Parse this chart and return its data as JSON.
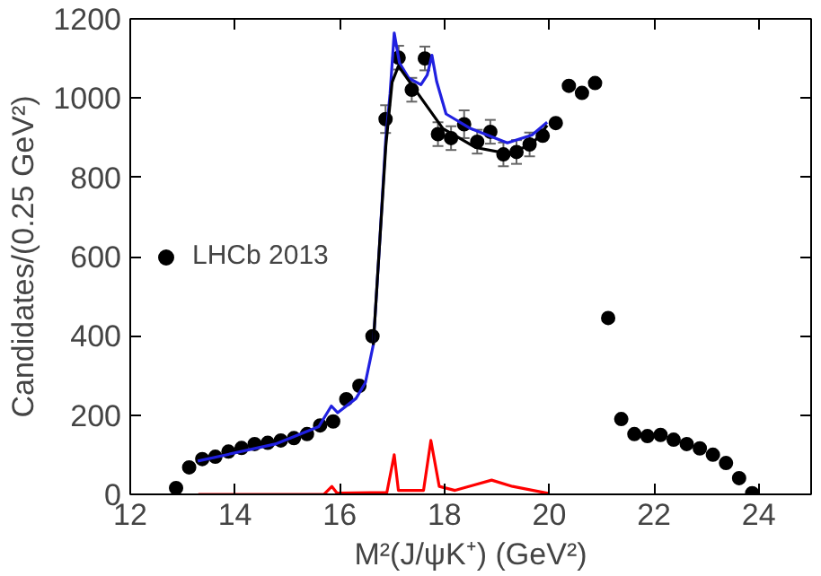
{
  "chart_data": {
    "type": "scatter",
    "xlabel": "M²(J/ψK⁺) (GeV²)",
    "ylabel": "Candidates/(0.25 GeV²)",
    "xlim": [
      12,
      25
    ],
    "ylim": [
      0,
      1200
    ],
    "xticks": [
      12,
      14,
      16,
      18,
      20,
      22,
      24
    ],
    "yticks": [
      0,
      200,
      400,
      600,
      800,
      1000,
      1200
    ],
    "grid": false,
    "legend": "left",
    "series": [
      {
        "name": "LHCb 2013",
        "marker": "circle",
        "color": "#000000",
        "x": [
          12.875,
          13.125,
          13.375,
          13.625,
          13.875,
          14.125,
          14.375,
          14.625,
          14.875,
          15.125,
          15.375,
          15.625,
          15.875,
          16.125,
          16.375,
          16.625,
          16.875,
          17.125,
          17.375,
          17.625,
          17.875,
          18.125,
          18.375,
          18.625,
          18.875,
          19.125,
          19.375,
          19.625,
          19.875,
          20.125,
          20.375,
          20.625,
          20.875,
          21.125,
          21.375,
          21.625,
          21.875,
          22.125,
          22.375,
          22.625,
          22.875,
          23.125,
          23.375,
          23.625,
          23.875
        ],
        "values": [
          16,
          68,
          89,
          95,
          108,
          117,
          127,
          130,
          136,
          142,
          152,
          174,
          184,
          240,
          274,
          399,
          947,
          1102,
          1021,
          1100,
          909,
          899,
          934,
          890,
          915,
          858,
          864,
          883,
          905,
          937,
          1031,
          1013,
          1038,
          445,
          190,
          152,
          147,
          150,
          138,
          127,
          116,
          100,
          79,
          41,
          3
        ],
        "errors": [
          null,
          null,
          null,
          null,
          null,
          null,
          null,
          null,
          null,
          null,
          null,
          null,
          null,
          null,
          null,
          null,
          35,
          30,
          30,
          30,
          30,
          30,
          35,
          30,
          30,
          30,
          30,
          30,
          null,
          null,
          null,
          null,
          null,
          null,
          null,
          null,
          null,
          null,
          null,
          null,
          null,
          null,
          null,
          null,
          null
        ]
      },
      {
        "type": "line",
        "color": "#2020e0",
        "x": [
          13.29,
          14.77,
          15.6,
          15.84,
          15.96,
          16.31,
          16.49,
          16.64,
          16.76,
          16.88,
          16.96,
          17.04,
          17.14,
          17.32,
          17.55,
          17.67,
          17.76,
          17.85,
          18.03,
          18.5,
          19.2,
          19.67,
          19.96
        ],
        "values": [
          84,
          127,
          171,
          223,
          206,
          242,
          282,
          377,
          630,
          899,
          1010,
          1164,
          1089,
          1050,
          1034,
          1058,
          1108,
          1042,
          960,
          923,
          887,
          907,
          939
        ]
      },
      {
        "type": "line",
        "color": "#000000",
        "x": [
          16.64,
          16.76,
          16.88,
          17.0,
          17.12,
          17.5,
          17.97,
          18.6,
          19.2,
          19.67,
          19.96
        ],
        "values": [
          377,
          630,
          880,
          1040,
          1081,
          1010,
          923,
          875,
          860,
          883,
          931
        ]
      },
      {
        "type": "line",
        "color": "#ff0000",
        "x": [
          13.3,
          15.7,
          15.85,
          15.95,
          16.9,
          17.04,
          17.12,
          17.6,
          17.74,
          17.9,
          18.2,
          18.6,
          18.9,
          19.3,
          20.0
        ],
        "values": [
          0,
          0,
          20,
          3,
          5,
          100,
          10,
          10,
          136,
          20,
          10,
          25,
          36,
          20,
          2
        ]
      }
    ]
  }
}
